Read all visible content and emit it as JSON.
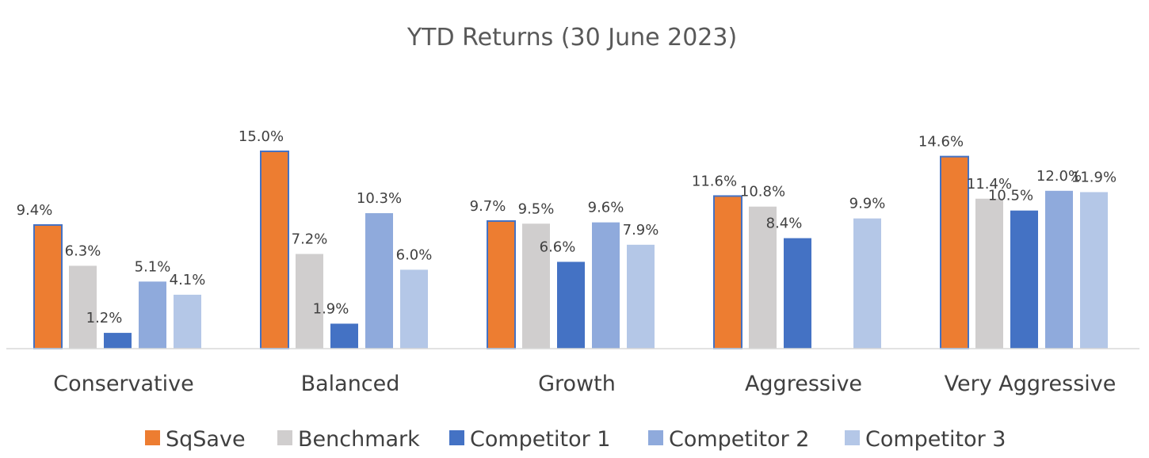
{
  "chart_data": {
    "type": "bar",
    "title": "YTD Returns (30 June 2023)",
    "xlabel": "",
    "ylabel": "",
    "categories": [
      "Conservative",
      "Balanced",
      "Growth",
      "Aggressive",
      "Very Aggressive"
    ],
    "series": [
      {
        "name": "SqSave",
        "color": "#ED7D31",
        "values": [
          9.4,
          15.0,
          9.7,
          11.6,
          14.6
        ],
        "labels": [
          "9.4%",
          "15.0%",
          "9.7%",
          "11.6%",
          "14.6%"
        ]
      },
      {
        "name": "Benchmark",
        "color": "#D0CECE",
        "values": [
          6.3,
          7.2,
          9.5,
          10.8,
          11.4
        ],
        "labels": [
          "6.3%",
          "7.2%",
          "9.5%",
          "10.8%",
          "11.4%"
        ]
      },
      {
        "name": "Competitor 1",
        "color": "#4472C4",
        "values": [
          1.2,
          1.9,
          6.6,
          8.4,
          10.5
        ],
        "labels": [
          "1.2%",
          "1.9%",
          "6.6%",
          "8.4%",
          "10.5%"
        ]
      },
      {
        "name": "Competitor 2",
        "color": "#8FAADC",
        "values": [
          5.1,
          10.3,
          9.6,
          null,
          12.0
        ],
        "labels": [
          "5.1%",
          "10.3%",
          "9.6%",
          "",
          "12.0%"
        ]
      },
      {
        "name": "Competitor 3",
        "color": "#B4C7E7",
        "values": [
          4.1,
          6.0,
          7.9,
          9.9,
          11.9
        ],
        "labels": [
          "4.1%",
          "6.0%",
          "7.9%",
          "9.9%",
          "11.9%"
        ]
      }
    ],
    "ylim": [
      0,
      15
    ],
    "grid": false,
    "legend_position": "bottom",
    "colors": {
      "axis_line": "#D9D9D9",
      "highlight_outline": "#4472C4"
    }
  }
}
